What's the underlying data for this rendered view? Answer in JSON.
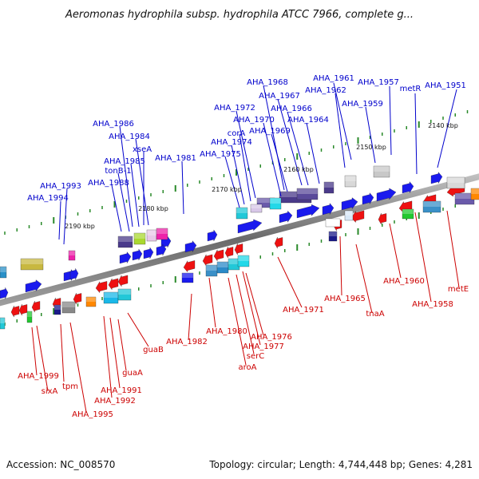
{
  "title": "Aeromonas hydrophila subsp. hydrophila ATCC 7966, complete g...",
  "footer": {
    "accession": "Accession: NC_008570",
    "summary": "Topology: circular; Length: 4,744,448 bp; Genes: 4,281"
  },
  "colors": {
    "forward": "#1a1aee",
    "reverse": "#ee1111",
    "label_top": "#0000cc",
    "label_bottom": "#cc0000",
    "backbone": "#8a8a8a",
    "tick": "#2a8a2a"
  },
  "position_ticks": [
    "2140 kbp",
    "2150 kbp",
    "2160 kbp",
    "2170 kbp",
    "2180 kbp",
    "2190 kbp"
  ],
  "top_labels": [
    "AHA_1951",
    "metR",
    "AHA_1957",
    "AHA_1959",
    "AHA_1961",
    "AHA_1962",
    "AHA_1964",
    "AHA_1966",
    "AHA_1967",
    "AHA_1968",
    "AHA_1969",
    "AHA_1970",
    "AHA_1972",
    "corA",
    "AHA_1974",
    "AHA_1975",
    "AHA_1981",
    "AHA_1984",
    "AHA_1985",
    "AHA_1986",
    "xseA",
    "tonB-1",
    "AHA_1988",
    "AHA_1993",
    "AHA_1994"
  ],
  "bottom_labels": [
    "metE",
    "AHA_1958",
    "AHA_1960",
    "tnaA",
    "AHA_1965",
    "AHA_1971",
    "AHA_1976",
    "AHA_1977",
    "serC",
    "aroA",
    "AHA_1980",
    "AHA_1982",
    "guaB",
    "guaA",
    "AHA_1991",
    "AHA_1992",
    "AHA_1995",
    "tpm",
    "sixA",
    "AHA_1999"
  ]
}
